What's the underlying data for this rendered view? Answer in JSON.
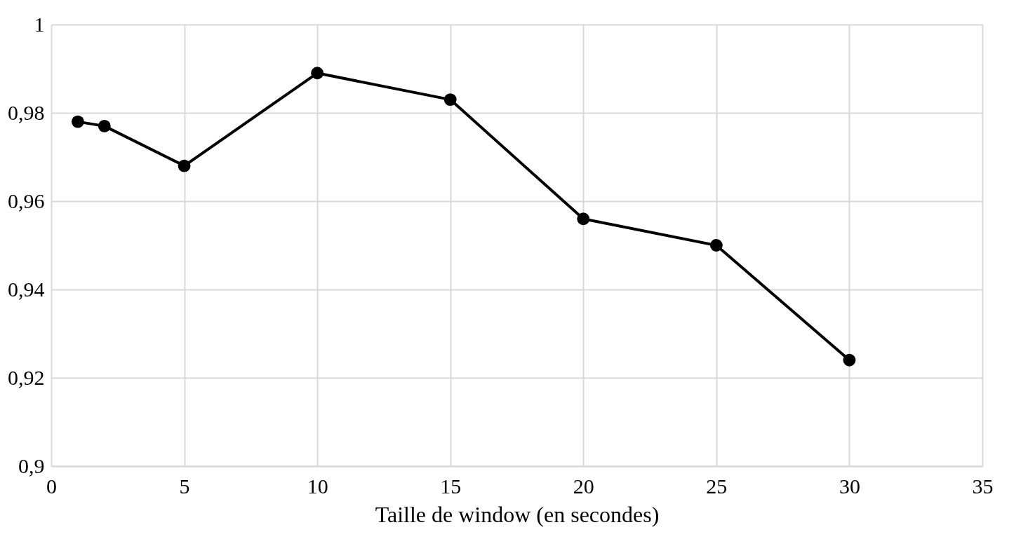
{
  "chart_data": {
    "type": "line",
    "xlabel": "Taille de window (en secondes)",
    "x": [
      1,
      2,
      5,
      10,
      15,
      20,
      25,
      30
    ],
    "series": [
      {
        "color": "#000000",
        "values": [
          0.978,
          0.977,
          0.968,
          0.989,
          0.983,
          0.956,
          0.95,
          0.924
        ]
      }
    ],
    "xlim": [
      0,
      35
    ],
    "xticks": [
      0,
      5,
      10,
      15,
      20,
      25,
      30,
      35
    ],
    "ylim": [
      0.9,
      1
    ],
    "yticks": [
      {
        "value": 0.9,
        "label": "0,9"
      },
      {
        "value": 0.92,
        "label": "0,92"
      },
      {
        "value": 0.94,
        "label": "0,94"
      },
      {
        "value": 0.96,
        "label": "0,96"
      },
      {
        "value": 0.98,
        "label": "0,98"
      },
      1
    ],
    "grid": true,
    "marker": "circle",
    "line_style": "solid"
  }
}
